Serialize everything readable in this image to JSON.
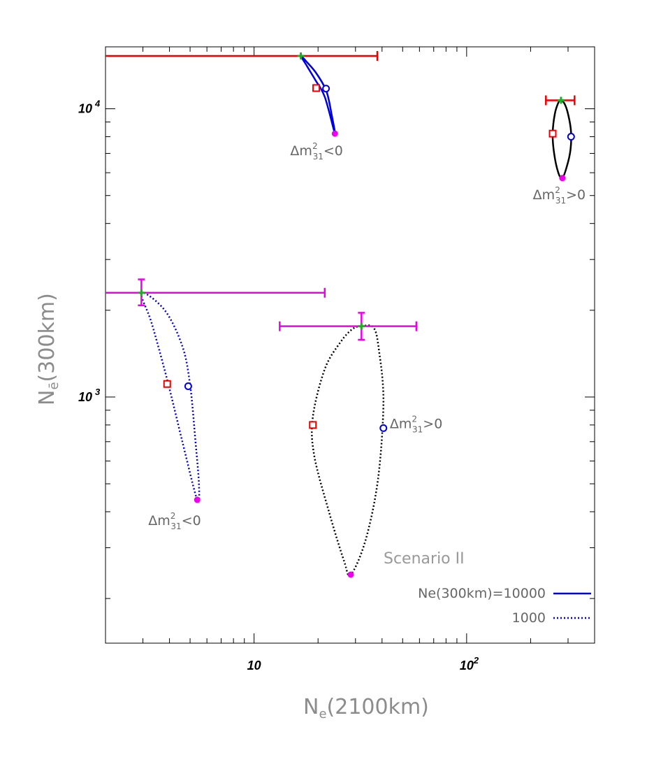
{
  "chart_data": {
    "type": "scatter",
    "title": "",
    "xlabel": {
      "main": "N",
      "sub": "e",
      "rest": "(2100km)"
    },
    "ylabel": {
      "main": "N",
      "sub": "ē",
      "rest": "(300km)"
    },
    "x_scale": "log",
    "y_scale": "log",
    "xlim": [
      2.0,
      400
    ],
    "ylim": [
      140,
      16400
    ],
    "x_ticks": [
      {
        "value": 10,
        "base": "10",
        "exp": ""
      },
      {
        "value": 100,
        "base": "10",
        "exp": "2"
      }
    ],
    "y_ticks": [
      {
        "value": 1000,
        "base": "10",
        "exp": "3"
      },
      {
        "value": 10000,
        "base": "10",
        "exp": "4"
      }
    ],
    "scenario_label": "Scenario II",
    "legend": {
      "position": "bottom-right",
      "entries": [
        {
          "label": "Ne(300km)=10000",
          "style": "solid",
          "color": "#0000dd"
        },
        {
          "label": "1000",
          "style": "dotted",
          "color": "#0000dd"
        }
      ]
    },
    "colors": {
      "normal": "#000000",
      "inverted": "#0000dd",
      "errorbar_10000": "#ee0000",
      "errorbar_1000": "#ee00ee",
      "point_plus": "#22aa22",
      "square": "#ee0000",
      "circle": "#0000dd",
      "dot": "#ee00ee"
    },
    "contours": [
      {
        "name": "Ne(300km)=10000, Δm²31<0",
        "style": "solid",
        "color": "#0000dd",
        "points": [
          [
            16.6,
            15250
          ],
          [
            17.8,
            14000
          ],
          [
            19.4,
            12600
          ],
          [
            21.5,
            11000
          ],
          [
            24.0,
            8200
          ],
          [
            23.2,
            9500
          ],
          [
            21.9,
            11500
          ],
          [
            19.6,
            13300
          ],
          [
            17.6,
            14600
          ],
          [
            16.6,
            15250
          ]
        ]
      },
      {
        "name": "Ne(300km)=10000, Δm²31>0",
        "style": "solid",
        "color": "#000000",
        "points": [
          [
            277,
            10700
          ],
          [
            289,
            10400
          ],
          [
            301,
            9500
          ],
          [
            310,
            8300
          ],
          [
            308,
            7200
          ],
          [
            296,
            6300
          ],
          [
            282,
            5750
          ],
          [
            270,
            6000
          ],
          [
            258,
            7000
          ],
          [
            254,
            8200
          ],
          [
            260,
            9600
          ],
          [
            270,
            10500
          ],
          [
            277,
            10700
          ]
        ]
      },
      {
        "name": "Ne(300km)=1000, Δm²31<0",
        "style": "dotted",
        "color": "#0000dd",
        "points": [
          [
            2.95,
            2300
          ],
          [
            3.3,
            1800
          ],
          [
            3.9,
            1150
          ],
          [
            4.6,
            700
          ],
          [
            5.4,
            440
          ],
          [
            5.5,
            500
          ],
          [
            5.3,
            700
          ],
          [
            5.0,
            1100
          ],
          [
            4.6,
            1500
          ],
          [
            3.8,
            2000
          ],
          [
            2.95,
            2300
          ]
        ]
      },
      {
        "name": "Ne(300km)=1000, Δm²31>0",
        "style": "dotted",
        "color": "#000000",
        "points": [
          [
            32,
            1760
          ],
          [
            36.5,
            1740
          ],
          [
            38.7,
            1450
          ],
          [
            40.6,
            960
          ],
          [
            38.3,
            520
          ],
          [
            33.5,
            320
          ],
          [
            28.5,
            242
          ],
          [
            26.5,
            270
          ],
          [
            22.5,
            400
          ],
          [
            19.2,
            625
          ],
          [
            18.9,
            850
          ],
          [
            21.5,
            1250
          ],
          [
            25.5,
            1550
          ],
          [
            29,
            1720
          ],
          [
            32,
            1760
          ]
        ]
      }
    ],
    "markers": [
      {
        "type": "plus",
        "x": 16.6,
        "y": 15250,
        "color": "#22aa22"
      },
      {
        "type": "square",
        "x": 19.6,
        "y": 11800,
        "color": "#ee0000"
      },
      {
        "type": "circle",
        "x": 21.8,
        "y": 11750,
        "color": "#0000dd"
      },
      {
        "type": "dot",
        "x": 24.0,
        "y": 8200,
        "color": "#ee00ee"
      },
      {
        "type": "plus",
        "x": 278,
        "y": 10700,
        "color": "#22aa22"
      },
      {
        "type": "square",
        "x": 254,
        "y": 8200,
        "color": "#ee0000"
      },
      {
        "type": "circle",
        "x": 310,
        "y": 8000,
        "color": "#0000dd"
      },
      {
        "type": "dot",
        "x": 282,
        "y": 5750,
        "color": "#ee00ee"
      },
      {
        "type": "plus",
        "x": 2.95,
        "y": 2300,
        "color": "#22aa22"
      },
      {
        "type": "square",
        "x": 3.9,
        "y": 1110,
        "color": "#ee0000"
      },
      {
        "type": "circle",
        "x": 4.9,
        "y": 1090,
        "color": "#0000dd"
      },
      {
        "type": "dot",
        "x": 5.4,
        "y": 440,
        "color": "#ee00ee"
      },
      {
        "type": "plus",
        "x": 32,
        "y": 1760,
        "color": "#22aa22"
      },
      {
        "type": "square",
        "x": 18.9,
        "y": 800,
        "color": "#ee0000"
      },
      {
        "type": "circle",
        "x": 40.6,
        "y": 780,
        "color": "#0000dd"
      },
      {
        "type": "dot",
        "x": 28.5,
        "y": 242,
        "color": "#ee00ee"
      }
    ],
    "error_bars": [
      {
        "x": 16.6,
        "y": 15250,
        "xlo": 2.0,
        "xhi": 38,
        "ylo": 15250,
        "yhi": 15250,
        "color": "#ee0000",
        "left_cap": false
      },
      {
        "x": 278,
        "y": 10700,
        "xlo": 236,
        "xhi": 322,
        "ylo": 10700,
        "yhi": 10700,
        "color": "#ee0000",
        "left_cap": true
      },
      {
        "x": 2.95,
        "y": 2300,
        "xlo": 2.0,
        "xhi": 21.5,
        "ylo": 2080,
        "yhi": 2560,
        "color": "#ee00ee",
        "left_cap": false
      },
      {
        "x": 32,
        "y": 1760,
        "xlo": 13.2,
        "xhi": 58,
        "ylo": 1580,
        "yhi": 1960,
        "color": "#ee00ee",
        "left_cap": true
      }
    ],
    "annotations": [
      {
        "text": "Δm",
        "sup": "2",
        "sub": "31",
        "rel": "<0",
        "x": 14.8,
        "y": 6900
      },
      {
        "text": "Δm",
        "sup": "2",
        "sub": "31",
        "rel": ">0",
        "x": 205,
        "y": 4850
      },
      {
        "text": "Δm",
        "sup": "2",
        "sub": "31",
        "rel": ">0",
        "x": 43.5,
        "y": 780
      },
      {
        "text": "Δm",
        "sup": "2",
        "sub": "31",
        "rel": "<0",
        "x": 3.18,
        "y": 360
      }
    ]
  }
}
